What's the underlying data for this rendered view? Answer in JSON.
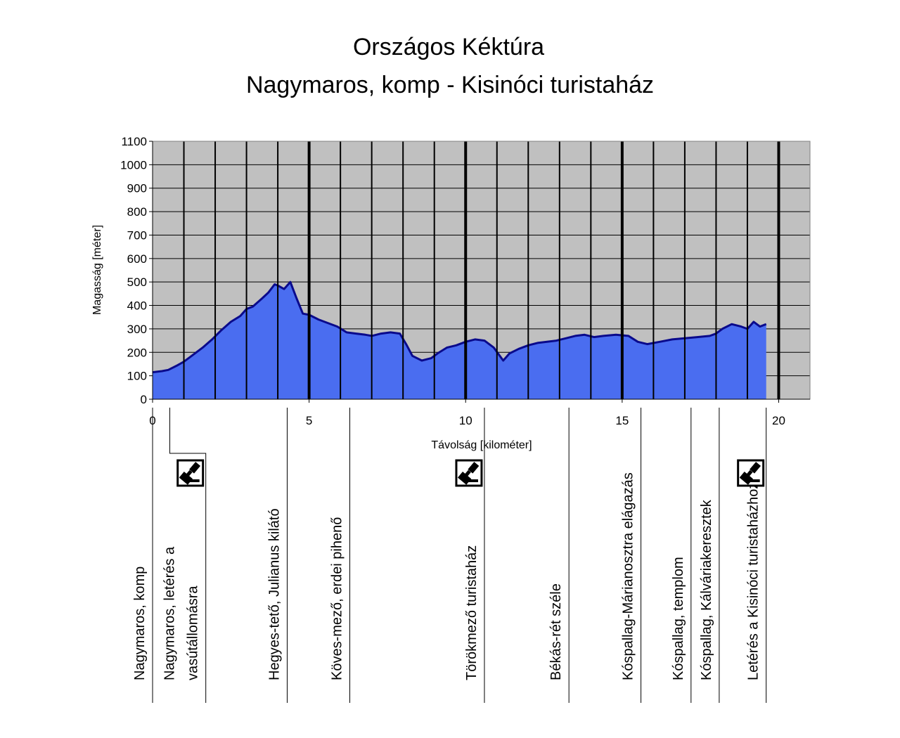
{
  "chart_data": {
    "type": "area",
    "title": "Országos Kéktúra",
    "subtitle": "Nagymaros, komp - Kisinóci turistaház",
    "xlabel": "Távolság [kilométer]",
    "ylabel": "Magasság [méter]",
    "xlim": [
      0,
      21
    ],
    "ylim": [
      0,
      1100
    ],
    "x_ticks": [
      0,
      5,
      10,
      15,
      20
    ],
    "x_tick_labels": [
      "0",
      "5",
      "10",
      "15",
      "20"
    ],
    "y_ticks": [
      0,
      100,
      200,
      300,
      400,
      500,
      600,
      700,
      800,
      900,
      1000,
      1100
    ],
    "y_tick_labels": [
      "0",
      "100",
      "200",
      "300",
      "400",
      "500",
      "600",
      "700",
      "800",
      "900",
      "1000",
      "1100"
    ],
    "grid": true,
    "minor_vertical_lines_km": [
      1,
      2,
      3,
      4,
      6,
      7,
      8,
      9,
      11,
      12,
      13,
      14,
      16,
      17,
      18,
      19
    ],
    "major_vertical_lines_km": [
      5,
      10,
      15,
      20
    ],
    "colors": {
      "plot_background": "#c0c0c0",
      "area_fill": "#4a6df0",
      "profile_line": "#0a0a8c",
      "grid": "#000000"
    },
    "series": [
      {
        "x": [
          0,
          0.3,
          0.5,
          0.8,
          1.0,
          1.3,
          1.6,
          1.9,
          2.2,
          2.5,
          2.8,
          3.0,
          3.2,
          3.5,
          3.7,
          3.9,
          4.0,
          4.2,
          4.4,
          4.6,
          4.8,
          5.0,
          5.3,
          5.6,
          5.9,
          6.2,
          6.5,
          6.8,
          7.0,
          7.3,
          7.6,
          7.9,
          8.1,
          8.3,
          8.6,
          8.9,
          9.1,
          9.4,
          9.7,
          10.0,
          10.3,
          10.6,
          10.9,
          11.2,
          11.4,
          11.7,
          12.0,
          12.3,
          12.6,
          12.9,
          13.2,
          13.5,
          13.8,
          14.1,
          14.4,
          14.8,
          15.2,
          15.5,
          15.8,
          16.2,
          16.6,
          17.0,
          17.4,
          17.8,
          18.0,
          18.2,
          18.5,
          18.8,
          19.0,
          19.2,
          19.4,
          19.6
        ],
        "y": [
          115,
          120,
          125,
          145,
          160,
          190,
          220,
          255,
          295,
          330,
          355,
          385,
          395,
          430,
          455,
          490,
          485,
          470,
          500,
          430,
          365,
          360,
          340,
          325,
          310,
          285,
          280,
          275,
          270,
          280,
          285,
          280,
          235,
          185,
          165,
          175,
          195,
          220,
          230,
          245,
          255,
          250,
          220,
          165,
          195,
          215,
          230,
          240,
          245,
          250,
          260,
          270,
          275,
          265,
          270,
          275,
          270,
          245,
          235,
          245,
          255,
          260,
          265,
          270,
          280,
          300,
          320,
          310,
          300,
          330,
          310,
          320
        ]
      }
    ],
    "waypoints": [
      {
        "km": 0.0,
        "label_lines": [
          "Nagymaros, komp"
        ],
        "stamp": false
      },
      {
        "km": 1.7,
        "label_lines": [
          "Nagymaros, letérés a",
          "vasútállomásra"
        ],
        "stamp": true
      },
      {
        "km": 4.3,
        "label_lines": [
          "Hegyes-tető, Julianus kilátó"
        ],
        "stamp": false
      },
      {
        "km": 6.3,
        "label_lines": [
          "Köves-mező, erdei pihenő"
        ],
        "stamp": false
      },
      {
        "km": 10.6,
        "label_lines": [
          "Törökmező turistaház"
        ],
        "stamp": true
      },
      {
        "km": 13.3,
        "label_lines": [
          "Békás-rét széle"
        ],
        "stamp": false
      },
      {
        "km": 15.6,
        "label_lines": [
          "Kóspallag-Márianosztra elágazás"
        ],
        "stamp": false
      },
      {
        "km": 17.2,
        "label_lines": [
          "Kóspallag, templom"
        ],
        "stamp": false
      },
      {
        "km": 18.1,
        "label_lines": [
          "Kóspallag, Kálváriakeresztek"
        ],
        "stamp": false
      },
      {
        "km": 19.6,
        "label_lines": [
          "Letérés a Kisinóci turistaházhoz"
        ],
        "stamp": true
      }
    ]
  }
}
